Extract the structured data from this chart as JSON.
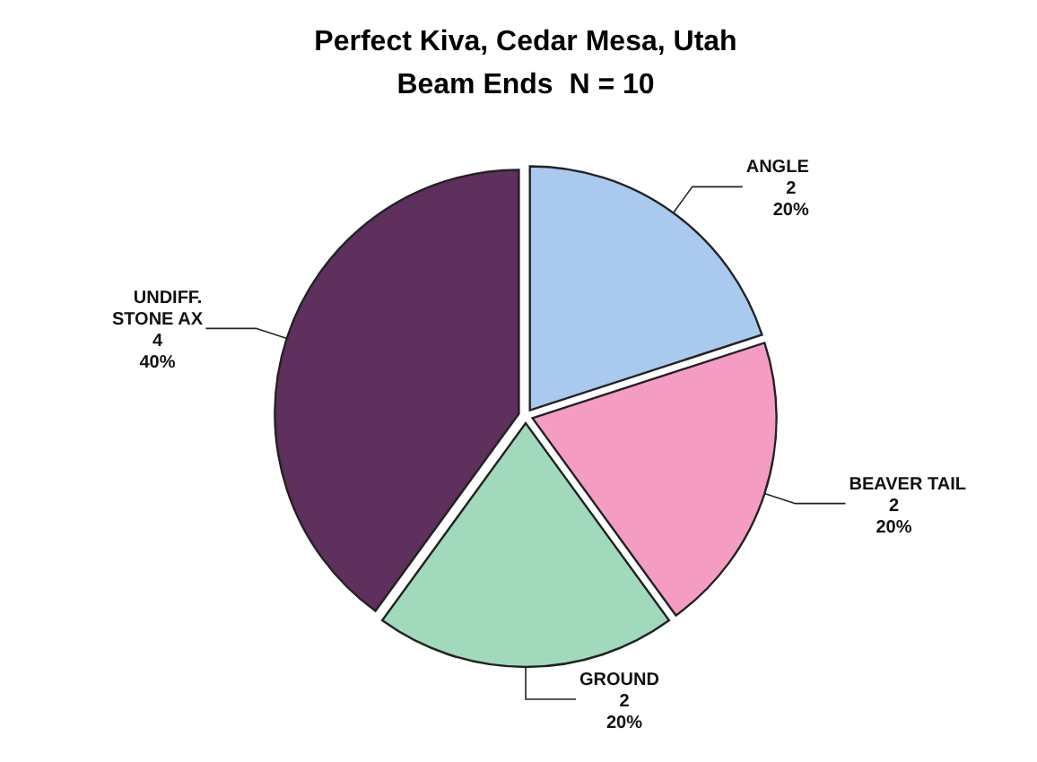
{
  "chart_data": {
    "type": "pie",
    "title": "Perfect Kiva, Cedar Mesa, Utah",
    "subtitle": "Beam Ends  N = 10",
    "categories": [
      "ANGLE",
      "BEAVER TAIL",
      "GROUND",
      "UNDIFF.\nSTONE AX"
    ],
    "values": [
      2,
      2,
      2,
      4
    ],
    "colors": [
      "#a9c9ee",
      "#f59cc2",
      "#a0d9bb",
      "#5f2f5d"
    ],
    "value_labels": [
      "2\n20%",
      "2\n20%",
      "2\n20%",
      "4\n40%"
    ]
  }
}
